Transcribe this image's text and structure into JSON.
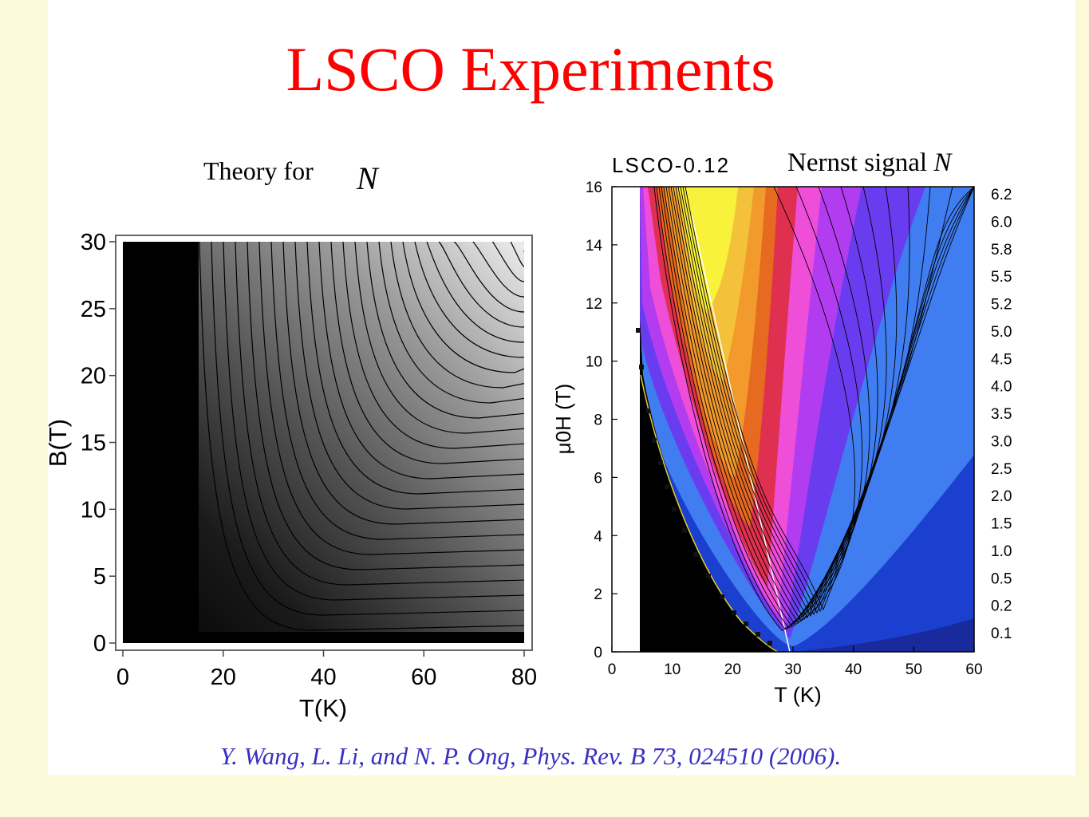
{
  "slide": {
    "title": "LSCO Experiments",
    "theory_label": "Theory for",
    "theory_symbol": "N",
    "nernst_label": "Nernst signal",
    "nernst_symbol": "N",
    "citation": "Y. Wang, L. Li, and N. P. Ong, Phys. Rev. B 73, 024510 (2006)."
  },
  "left_plot": {
    "xlabel": "T(K)",
    "ylabel": "B(T)",
    "x_ticks": [
      "0",
      "20",
      "40",
      "60",
      "80"
    ],
    "y_ticks": [
      "0",
      "5",
      "10",
      "15",
      "20",
      "25",
      "30"
    ],
    "xlim": [
      0,
      80
    ],
    "ylim": [
      0,
      30
    ]
  },
  "right_plot": {
    "title": "LSCO-0.12",
    "xlabel": "T (K)",
    "ylabel": "μ0H (T)",
    "x_ticks": [
      "0",
      "10",
      "20",
      "30",
      "40",
      "50",
      "60"
    ],
    "y_ticks": [
      "0",
      "2",
      "4",
      "6",
      "8",
      "10",
      "12",
      "14",
      "16"
    ],
    "xlim": [
      0,
      60
    ],
    "ylim": [
      0,
      16
    ],
    "contour_levels": [
      "6.2",
      "6.0",
      "5.8",
      "5.5",
      "5.2",
      "5.0",
      "4.5",
      "4.0",
      "3.5",
      "3.0",
      "2.5",
      "2.0",
      "1.5",
      "1.0",
      "0.5",
      "0.2",
      "0.1"
    ]
  }
}
